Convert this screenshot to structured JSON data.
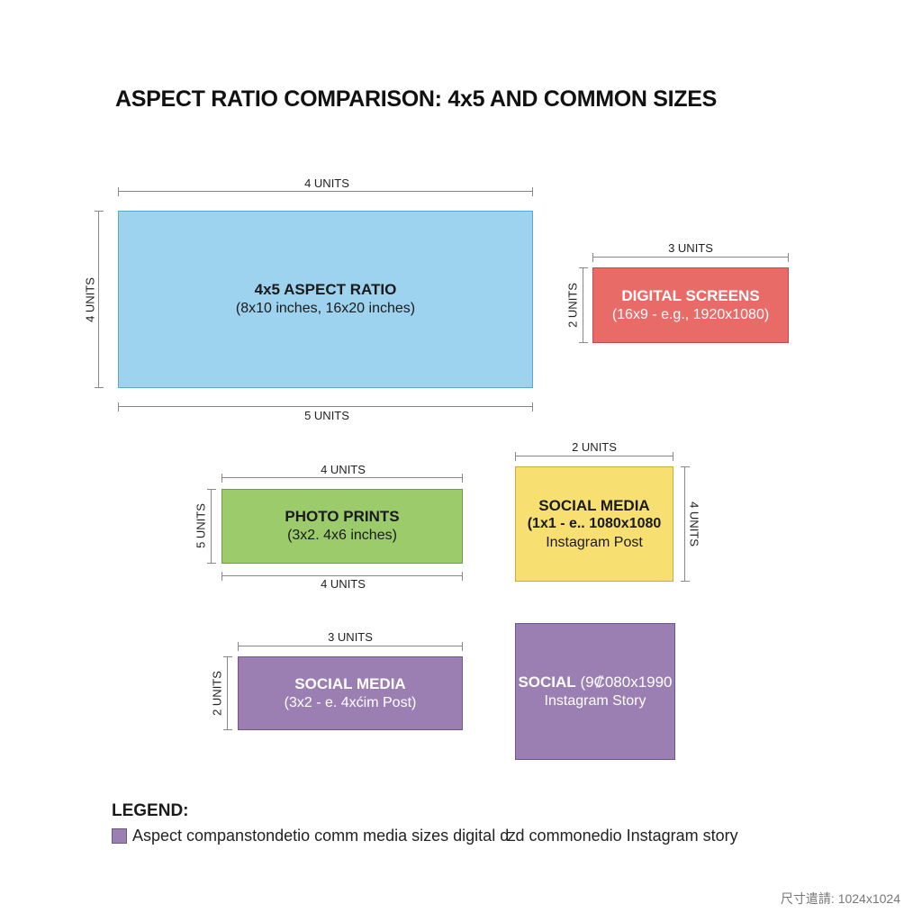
{
  "title": "ASPECT RATIO COMPARISON: 4x5 AND COMMON SIZES",
  "colors": {
    "blue": "#9dd3ef",
    "red": "#e86b68",
    "green": "#9bcb6a",
    "yellow": "#f7e071",
    "purple": "#9b7fb3",
    "dimension_line": "#888888"
  },
  "boxes": {
    "four_by_five": {
      "title": "4x5 ASPECT RATIO",
      "subtitle": "(8x10 inches, 16x20 inches)",
      "top_dim": "4 UNITS",
      "bottom_dim": "5 UNITS",
      "side_dim": "4 UNITS"
    },
    "digital_screens": {
      "title": "DIGITAL SCREENS",
      "subtitle": "(16x9 - e.g., 1920x1080)",
      "top_dim": "3 UNITS",
      "side_dim": "2 UNITS"
    },
    "photo_prints": {
      "title": "PHOTO PRINTS",
      "subtitle": "(3x2. 4x6 inches)",
      "top_dim": "4 UNITS",
      "bottom_dim": "4 UNITS",
      "side_dim": "5 UNITS"
    },
    "social_square": {
      "title": "SOCIAL MEDIA",
      "subtitle": "(1x1 - e.. 1080x1080",
      "subtitle2": "Instagram Post",
      "top_dim": "2 UNITS",
      "side_dim": "4 UNITS"
    },
    "social_post": {
      "title": "SOCIAL MEDIA",
      "subtitle": "(3x2 - e. 4xćim Post)",
      "top_dim": "3 UNITS",
      "side_dim": "2 UNITS"
    },
    "social_story": {
      "title": "SOCIAL",
      "title_extra": "(9₡080x1990",
      "subtitle": "Instagram Story"
    }
  },
  "legend": {
    "title": "LEGEND:",
    "text": "Aspect companstondetio comm media sizes digital ʣd commonedio Instagram story"
  },
  "footer": "尺寸遣請: 1024x1024"
}
